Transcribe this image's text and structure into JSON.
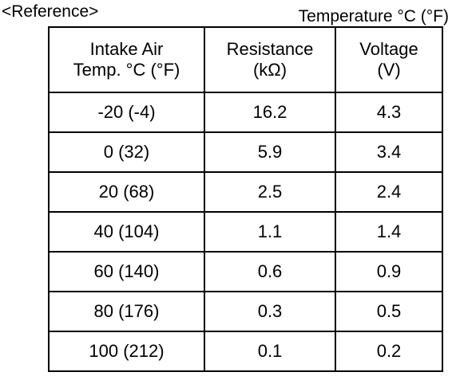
{
  "reference_label": "<Reference>",
  "unit_note": "Temperature °C (°F)",
  "table": {
    "headers": [
      {
        "line1": "Intake Air",
        "line2": "Temp. °C (°F)"
      },
      {
        "line1": "Resistance",
        "line2": "(kΩ)"
      },
      {
        "line1": "Voltage",
        "line2": "(V)"
      }
    ],
    "rows": [
      {
        "temp": "-20 (-4)",
        "resistance": "16.2",
        "voltage": "4.3"
      },
      {
        "temp": "0 (32)",
        "resistance": "5.9",
        "voltage": "3.4"
      },
      {
        "temp": "20 (68)",
        "resistance": "2.5",
        "voltage": "2.4"
      },
      {
        "temp": "40 (104)",
        "resistance": "1.1",
        "voltage": "1.4"
      },
      {
        "temp": "60 (140)",
        "resistance": "0.6",
        "voltage": "0.9"
      },
      {
        "temp": "80 (176)",
        "resistance": "0.3",
        "voltage": "0.5"
      },
      {
        "temp": "100 (212)",
        "resistance": "0.1",
        "voltage": "0.2"
      }
    ]
  }
}
